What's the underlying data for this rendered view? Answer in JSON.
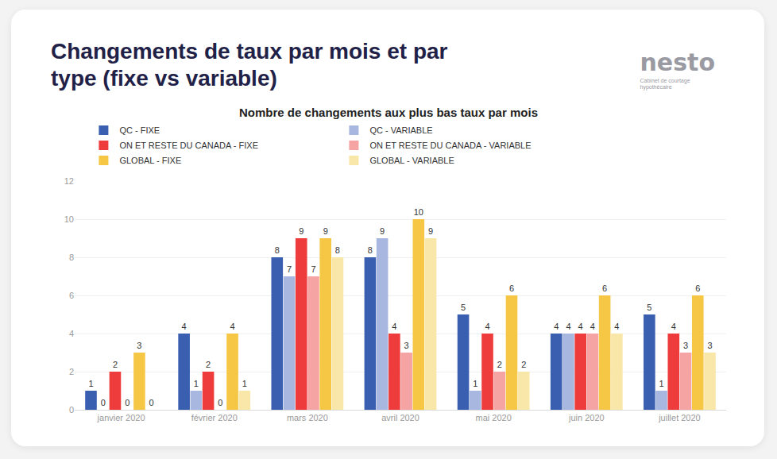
{
  "header": {
    "title": "Changements de taux par mois et par type (fixe vs variable)",
    "brand": "nesto",
    "brand_subtitle": "Cabinet de courtage hypothécaire"
  },
  "chart_data": {
    "type": "bar",
    "title": "Nombre de changements aux plus bas taux par mois",
    "categories": [
      "janvier 2020",
      "février 2020",
      "mars 2020",
      "avril 2020",
      "mai 2020",
      "juin 2020",
      "juillet 2020"
    ],
    "series": [
      {
        "name": "QC - FIXE",
        "color": "#3a5fb0",
        "values": [
          1,
          4,
          8,
          8,
          5,
          4,
          5
        ]
      },
      {
        "name": "QC - VARIABLE",
        "color": "#a7b7e0",
        "values": [
          0,
          1,
          7,
          9,
          1,
          4,
          1
        ]
      },
      {
        "name": "ON ET RESTE DU CANADA - FIXE",
        "color": "#ee3b3b",
        "values": [
          2,
          2,
          9,
          4,
          4,
          4,
          4
        ]
      },
      {
        "name": "ON ET RESTE DU CANADA - VARIABLE",
        "color": "#f5a3a3",
        "values": [
          0,
          0,
          7,
          3,
          2,
          4,
          3
        ]
      },
      {
        "name": "GLOBAL - FIXE",
        "color": "#f6c744",
        "values": [
          3,
          4,
          9,
          10,
          6,
          6,
          6
        ]
      },
      {
        "name": "GLOBAL - VARIABLE",
        "color": "#f8e7a9",
        "values": [
          0,
          1,
          8,
          9,
          2,
          4,
          3
        ]
      }
    ],
    "ylim": [
      0,
      12
    ],
    "yticks": [
      0,
      2,
      4,
      6,
      8,
      10,
      12
    ],
    "grid": true,
    "legend": "top",
    "data_labels": true
  }
}
